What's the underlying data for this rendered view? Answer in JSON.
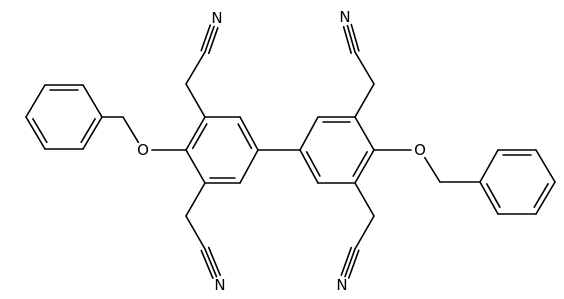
{
  "atoms": [
    {
      "label": "N"
    },
    {
      "label": "N"
    },
    {
      "label": "O"
    },
    {
      "label": "N"
    },
    {
      "label": "N"
    },
    {
      "label": "O"
    }
  ]
}
